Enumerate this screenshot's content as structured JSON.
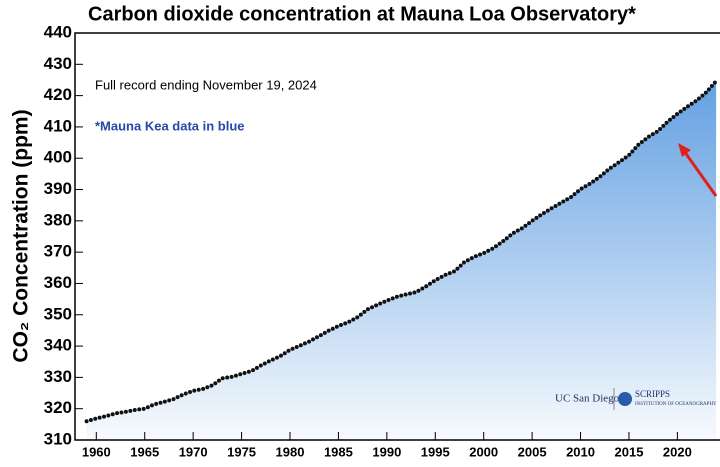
{
  "chart_data": {
    "type": "line",
    "title": "Carbon dioxide concentration at Mauna Loa Observatory*",
    "y_label": "CO₂ Concentration (ppm)",
    "annotations": [
      "Full record ending November 19, 2024",
      "*Mauna Kea data in blue"
    ],
    "logos": [
      "UC San Diego",
      "SCRIPPS",
      "INSTITUTION OF OCEANOGRAPHY"
    ],
    "xlim": [
      1957.8,
      2024.4
    ],
    "xticks": [
      1960,
      1965,
      1970,
      1975,
      1980,
      1985,
      1990,
      1995,
      2000,
      2005,
      2010,
      2015,
      2020
    ],
    "ylim": [
      310,
      440
    ],
    "yticks": [
      310,
      320,
      330,
      340,
      350,
      360,
      370,
      380,
      390,
      400,
      410,
      420,
      430,
      440
    ],
    "series": [
      {
        "color": "#111111",
        "x": [
          1959,
          1960,
          1961,
          1962,
          1963,
          1964,
          1965,
          1966,
          1967,
          1968,
          1969,
          1970,
          1971,
          1972,
          1973,
          1974,
          1975,
          1976,
          1977,
          1978,
          1979,
          1980,
          1981,
          1982,
          1983,
          1984,
          1985,
          1986,
          1987,
          1988,
          1989,
          1990,
          1991,
          1992,
          1993,
          1994,
          1995,
          1996,
          1997,
          1998,
          1999,
          2000,
          2001,
          2002,
          2003,
          2004,
          2005,
          2006,
          2007,
          2008,
          2009,
          2010,
          2011,
          2012,
          2013,
          2014,
          2015,
          2016,
          2017,
          2018,
          2019,
          2020,
          2021,
          2022,
          2023,
          2024
        ],
        "values": [
          316.0,
          316.9,
          317.6,
          318.5,
          319.0,
          319.6,
          320.0,
          321.4,
          322.2,
          323.1,
          324.6,
          325.7,
          326.3,
          327.5,
          329.7,
          330.2,
          331.1,
          332.0,
          333.8,
          335.4,
          336.8,
          338.8,
          340.1,
          341.5,
          343.2,
          344.9,
          346.4,
          347.6,
          349.3,
          351.7,
          353.2,
          354.5,
          355.7,
          356.5,
          357.2,
          359.0,
          361.0,
          362.7,
          363.9,
          366.8,
          368.5,
          369.7,
          371.3,
          373.5,
          376.0,
          377.7,
          380.0,
          382.1,
          384.0,
          385.8,
          387.6,
          390.1,
          391.9,
          394.1,
          396.7,
          398.8,
          401.0,
          404.4,
          406.8,
          408.7,
          411.7,
          414.2,
          416.4,
          418.5,
          421.1,
          424.6
        ]
      }
    ],
    "fill_color": "#5b9be0"
  }
}
